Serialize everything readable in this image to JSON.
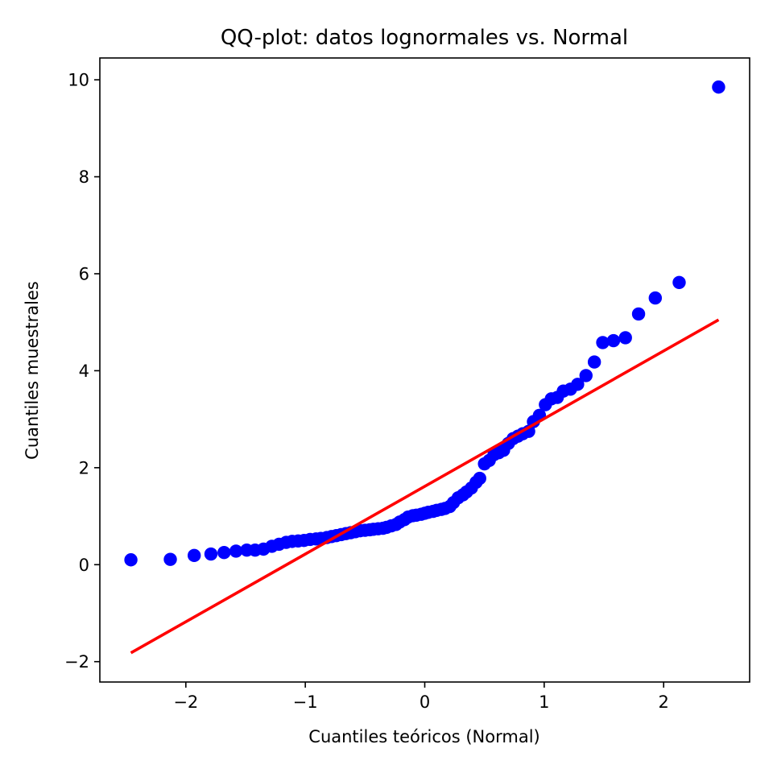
{
  "chart_data": {
    "type": "scatter",
    "title": "QQ-plot: datos lognormales vs. Normal",
    "xlabel": "Cuantiles teóricos (Normal)",
    "ylabel": "Cuantiles muestrales",
    "xlim": [
      -2.72,
      2.72
    ],
    "ylim": [
      -2.42,
      10.45
    ],
    "x_ticks": [
      -2,
      -1,
      0,
      1,
      2
    ],
    "x_tick_labels": [
      "−2",
      "−1",
      "0",
      "1",
      "2"
    ],
    "y_ticks": [
      -2,
      0,
      2,
      4,
      6,
      8,
      10
    ],
    "y_tick_labels": [
      "−2",
      "0",
      "2",
      "4",
      "6",
      "8",
      "10"
    ],
    "grid": false,
    "colors": {
      "points": "#0000ff",
      "fit_line": "#ff0000",
      "axes": "#000000"
    },
    "series": [
      {
        "name": "muestra",
        "kind": "scatter",
        "x": [
          -2.46,
          -2.13,
          -1.93,
          -1.79,
          -1.68,
          -1.58,
          -1.49,
          -1.42,
          -1.35,
          -1.28,
          -1.22,
          -1.16,
          -1.11,
          -1.06,
          -1.01,
          -0.96,
          -0.91,
          -0.87,
          -0.82,
          -0.78,
          -0.74,
          -0.7,
          -0.66,
          -0.62,
          -0.58,
          -0.54,
          -0.5,
          -0.46,
          -0.43,
          -0.39,
          -0.35,
          -0.32,
          -0.28,
          -0.24,
          -0.21,
          -0.17,
          -0.14,
          -0.1,
          -0.07,
          -0.03,
          0.0,
          0.03,
          0.07,
          0.1,
          0.14,
          0.17,
          0.21,
          0.24,
          0.28,
          0.32,
          0.35,
          0.39,
          0.43,
          0.46,
          0.5,
          0.54,
          0.58,
          0.62,
          0.66,
          0.7,
          0.74,
          0.78,
          0.82,
          0.87,
          0.91,
          0.96,
          1.01,
          1.06,
          1.11,
          1.16,
          1.22,
          1.28,
          1.35,
          1.42,
          1.49,
          1.58,
          1.68,
          1.79,
          1.93,
          2.13,
          2.46
        ],
        "y": [
          0.1,
          0.11,
          0.19,
          0.22,
          0.25,
          0.28,
          0.3,
          0.3,
          0.32,
          0.38,
          0.42,
          0.46,
          0.48,
          0.49,
          0.5,
          0.52,
          0.53,
          0.54,
          0.56,
          0.58,
          0.6,
          0.62,
          0.64,
          0.66,
          0.68,
          0.7,
          0.71,
          0.72,
          0.73,
          0.74,
          0.75,
          0.77,
          0.8,
          0.83,
          0.88,
          0.93,
          0.98,
          1.01,
          1.02,
          1.04,
          1.06,
          1.08,
          1.1,
          1.12,
          1.14,
          1.16,
          1.2,
          1.28,
          1.38,
          1.44,
          1.5,
          1.58,
          1.7,
          1.78,
          2.08,
          2.15,
          2.27,
          2.31,
          2.36,
          2.5,
          2.6,
          2.65,
          2.7,
          2.75,
          2.95,
          3.08,
          3.3,
          3.42,
          3.45,
          3.58,
          3.62,
          3.72,
          3.9,
          4.18,
          4.58,
          4.62,
          4.68,
          5.17,
          5.5,
          5.82,
          9.85
        ]
      },
      {
        "name": "ajuste",
        "kind": "line",
        "x": [
          -2.46,
          2.46
        ],
        "y": [
          -1.82,
          5.05
        ]
      }
    ]
  }
}
